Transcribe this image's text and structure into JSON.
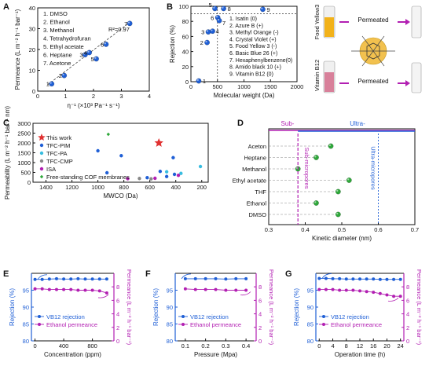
{
  "colors": {
    "blue": "#1f5fd6",
    "purple": "#b21fb2",
    "green": "#2ea83a",
    "red": "#e03030",
    "grey": "#888888",
    "cyan": "#38bde0"
  },
  "chart_data": [
    {
      "panel": "A",
      "type": "scatter",
      "xlabel": "η⁻¹ (×10³ Pa⁻¹ s⁻¹)",
      "ylabel": "Permeance (L m⁻² h⁻¹ bar⁻¹)",
      "xlim": [
        0,
        4
      ],
      "ylim": [
        0,
        40
      ],
      "xticks": [
        "0",
        "1",
        "2",
        "3",
        "4"
      ],
      "yticks": [
        "0",
        "10",
        "20",
        "30",
        "40"
      ],
      "annotation": "R²=0.97",
      "legend": [
        "1. DMSO",
        "2. Ethanol",
        "3. Methanol",
        "4. Tetrahydrofuran",
        "5. Ethyl acetate",
        "6. Heptane",
        "7. Acetone"
      ],
      "points": [
        {
          "label": "1",
          "x": 0.5,
          "y": 3.5
        },
        {
          "label": "2",
          "x": 0.95,
          "y": 7.5
        },
        {
          "label": "3",
          "x": 1.7,
          "y": 17.5
        },
        {
          "label": "4",
          "x": 1.85,
          "y": 18.5
        },
        {
          "label": "5",
          "x": 2.1,
          "y": 15.5
        },
        {
          "label": "6",
          "x": 2.45,
          "y": 22.5
        },
        {
          "label": "7",
          "x": 3.3,
          "y": 32.5
        }
      ],
      "fit": [
        [
          0.35,
          3.0
        ],
        [
          3.35,
          33.5
        ]
      ]
    },
    {
      "panel": "B",
      "type": "scatter",
      "xlabel": "Molecular weight (Da)",
      "ylabel": "Rejection (%)",
      "xlim": [
        0,
        2000
      ],
      "ylim": [
        0,
        100
      ],
      "xticks": [
        "0",
        "500",
        "1000",
        "1500",
        "2000"
      ],
      "yticks": [
        "0",
        "20",
        "40",
        "60",
        "80",
        "100"
      ],
      "reference_y": 90,
      "reference_x": 500,
      "legend": [
        "1. Isatin (0)",
        "2. Azure B (+)",
        "3. Methyl Orange (-)",
        "4. Crystal Violet (+)",
        "5. Food Yellow 3 (-)",
        "6. Basic Blue 26 (+)",
        "7. Hexaphenylbenzene(0)",
        "8. Amido black 10 (+)",
        "9. Vitamin B12 (0)"
      ],
      "points": [
        {
          "label": "1",
          "x": 147,
          "y": 1
        },
        {
          "label": "2",
          "x": 305,
          "y": 52
        },
        {
          "label": "3",
          "x": 327,
          "y": 66
        },
        {
          "label": "4",
          "x": 408,
          "y": 67
        },
        {
          "label": "5",
          "x": 452,
          "y": 97
        },
        {
          "label": "6",
          "x": 506,
          "y": 85
        },
        {
          "label": "7",
          "x": 534,
          "y": 81
        },
        {
          "label": "8",
          "x": 616,
          "y": 97
        },
        {
          "label": "9",
          "x": 1355,
          "y": 96
        }
      ],
      "graphic": {
        "dye_top": "Food Yellow3",
        "dye_bottom": "Vitamin B12",
        "arrow_label": "Permeated"
      }
    },
    {
      "panel": "C",
      "type": "scatter",
      "xlabel": "MWCO (Da)",
      "ylabel": "Permeability (L m⁻² h⁻¹ bar⁻¹ nm)",
      "xlim": [
        1500,
        150
      ],
      "ylim": [
        0,
        3000
      ],
      "xticks": [
        "1400",
        "1200",
        "1000",
        "800",
        "600",
        "400",
        "200"
      ],
      "yticks": [
        "0",
        "500",
        "1000",
        "1500",
        "2000",
        "2500",
        "3000"
      ],
      "series": [
        {
          "name": "This work",
          "marker": "star",
          "color": "#e03030",
          "points": [
            [
              530,
              2000
            ]
          ]
        },
        {
          "name": "TFC-PIM",
          "marker": "circle",
          "color": "#1f5fd6",
          "points": [
            [
              1000,
              1600
            ],
            [
              820,
              1350
            ],
            [
              930,
              480
            ],
            [
              420,
              1250
            ],
            [
              520,
              550
            ],
            [
              410,
              400
            ],
            [
              470,
              290
            ],
            [
              620,
              230
            ]
          ]
        },
        {
          "name": "TFC-PA",
          "marker": "circle",
          "color": "#38bde0",
          "points": [
            [
              210,
              800
            ],
            [
              470,
              530
            ],
            [
              360,
              450
            ]
          ]
        },
        {
          "name": "TFC-CMP",
          "marker": "circle",
          "color": "#888888",
          "points": [
            [
              590,
              170
            ],
            [
              680,
              190
            ]
          ]
        },
        {
          "name": "ISA",
          "marker": "circle",
          "color": "#b21fb2",
          "points": [
            [
              770,
              180
            ],
            [
              560,
              200
            ],
            [
              380,
              350
            ]
          ]
        },
        {
          "name": "Free-standing COF membranes",
          "marker": "diamond",
          "color": "#2ea83a",
          "points": [
            [
              920,
              2440
            ]
          ]
        }
      ]
    },
    {
      "panel": "D",
      "type": "scatter",
      "xlabel": "Kinetic diameter (nm)",
      "ylabel": "",
      "xlim": [
        0.3,
        0.7
      ],
      "xticks": [
        "0.3",
        "0.4",
        "0.5",
        "0.6",
        "0.7"
      ],
      "categories": [
        "Aceton",
        "Heptane",
        "Methanol",
        "Ethyl acetate",
        "THF",
        "Ethanol",
        "DMSO"
      ],
      "values": [
        0.47,
        0.43,
        0.38,
        0.52,
        0.49,
        0.43,
        0.49
      ],
      "header": {
        "sub": "Sub-",
        "ultra": "Ultra-"
      },
      "region_labels": {
        "sub": "Sub-micropores",
        "ultra": "Ultra-micropores"
      },
      "boundaries": [
        0.38,
        0.6
      ]
    },
    {
      "panel": "E",
      "type": "line",
      "xlabel": "Concentration (ppm)",
      "ylabel": "Rejection (%)",
      "y2label": "Permeance (L m⁻² h⁻¹ bar⁻¹)",
      "xlim": [
        -50,
        1100
      ],
      "ylim": [
        80,
        100
      ],
      "y2lim": [
        0,
        10
      ],
      "xticks": [
        "0",
        "400",
        "800"
      ],
      "xtick_vals": [
        0,
        400,
        800
      ],
      "yticks": [
        "80",
        "85",
        "90",
        "95"
      ],
      "y2ticks": [
        "0",
        "2",
        "4",
        "6",
        "8"
      ],
      "legend": [
        "VB12 rejection",
        "Ethanol permeance"
      ],
      "series": [
        {
          "name": "VB12 rejection",
          "x": [
            0,
            100,
            200,
            300,
            400,
            500,
            600,
            700,
            800,
            900,
            1000
          ],
          "values": [
            98.2,
            98.2,
            98.3,
            98.4,
            98.3,
            98.3,
            98.4,
            98.3,
            98.3,
            98.3,
            98.3
          ]
        },
        {
          "name": "Ethanol permeance",
          "x": [
            0,
            100,
            200,
            300,
            400,
            500,
            600,
            700,
            800,
            900,
            1000
          ],
          "values": [
            7.7,
            7.7,
            7.6,
            7.6,
            7.6,
            7.6,
            7.5,
            7.5,
            7.5,
            7.4,
            7.1
          ]
        }
      ]
    },
    {
      "panel": "F",
      "type": "line",
      "xlabel": "Pressure (Mpa)",
      "ylabel": "Rejection (%)",
      "y2label": "Permeance (L m⁻² h⁻¹ bar⁻¹)",
      "xlim": [
        0.05,
        0.45
      ],
      "ylim": [
        80,
        100
      ],
      "y2lim": [
        0,
        10
      ],
      "xticks": [
        "0.1",
        "0.2",
        "0.3",
        "0.4"
      ],
      "xtick_vals": [
        0.1,
        0.2,
        0.3,
        0.4
      ],
      "yticks": [
        "80",
        "85",
        "90",
        "95"
      ],
      "y2ticks": [
        "0",
        "2",
        "4",
        "6",
        "8"
      ],
      "legend": [
        "VB12 rejection",
        "Ethanol permeance"
      ],
      "series": [
        {
          "name": "VB12 rejection",
          "x": [
            0.1,
            0.15,
            0.2,
            0.25,
            0.3,
            0.35,
            0.4
          ],
          "values": [
            98.4,
            98.4,
            98.4,
            98.4,
            98.3,
            98.4,
            98.4
          ]
        },
        {
          "name": "Ethanol permeance",
          "x": [
            0.1,
            0.15,
            0.2,
            0.25,
            0.3,
            0.35,
            0.4
          ],
          "values": [
            7.7,
            7.6,
            7.6,
            7.6,
            7.5,
            7.5,
            7.5
          ]
        }
      ]
    },
    {
      "panel": "G",
      "type": "line",
      "xlabel": "Operation time (h)",
      "ylabel": "Rejection (%)",
      "y2label": "Permeance (L m⁻² h⁻¹ bar⁻¹)",
      "xlim": [
        -1,
        25
      ],
      "ylim": [
        80,
        100
      ],
      "y2lim": [
        0,
        10
      ],
      "xticks": [
        "0",
        "4",
        "8",
        "12",
        "16",
        "20",
        "24"
      ],
      "xtick_vals": [
        0,
        4,
        8,
        12,
        16,
        20,
        24
      ],
      "yticks": [
        "80",
        "85",
        "90",
        "95"
      ],
      "y2ticks": [
        "0",
        "2",
        "4",
        "6",
        "8"
      ],
      "legend": [
        "VB12 rejection",
        "Ethanol permeance"
      ],
      "series": [
        {
          "name": "VB12 rejection",
          "x": [
            0,
            2,
            4,
            6,
            8,
            10,
            12,
            14,
            16,
            18,
            20,
            22,
            24
          ],
          "values": [
            98.5,
            98.5,
            98.4,
            98.4,
            98.3,
            98.3,
            98.3,
            98.3,
            98.3,
            98.2,
            98.2,
            98.2,
            98.2
          ]
        },
        {
          "name": "Ethanol permeance",
          "x": [
            0,
            2,
            4,
            6,
            8,
            10,
            12,
            14,
            16,
            18,
            20,
            22,
            24
          ],
          "values": [
            7.6,
            7.6,
            7.6,
            7.5,
            7.5,
            7.5,
            7.4,
            7.3,
            7.2,
            7.0,
            6.8,
            6.6,
            6.6
          ]
        }
      ]
    }
  ]
}
